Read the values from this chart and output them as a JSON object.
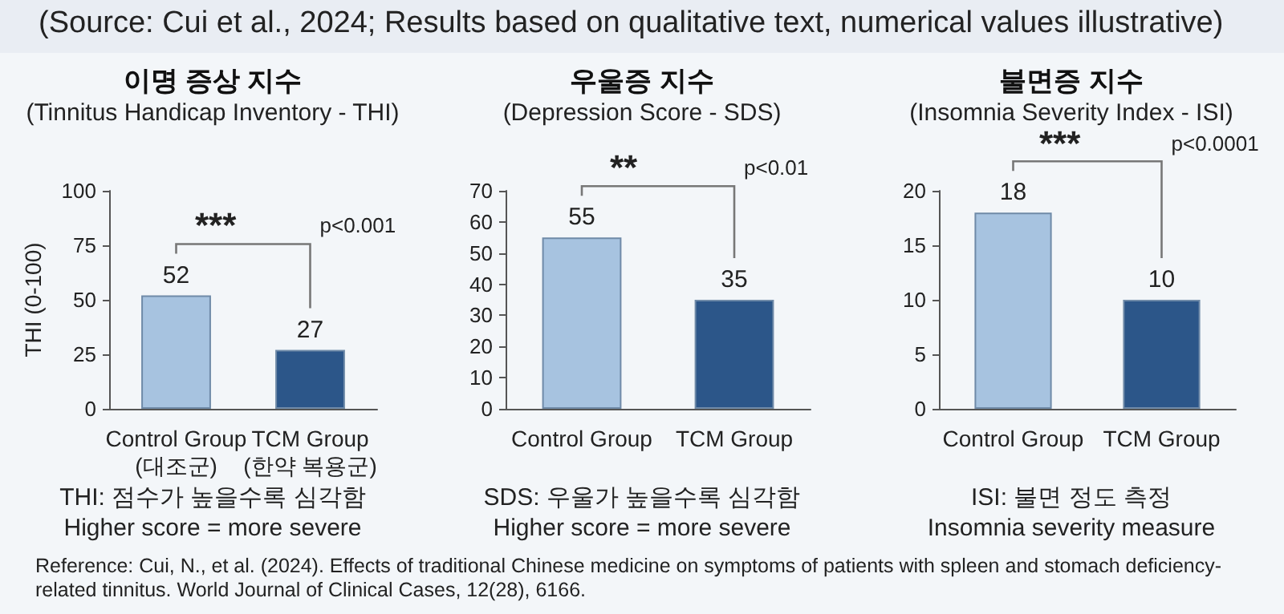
{
  "chart_data": [
    {
      "type": "bar",
      "title": "이명 증상 지수",
      "subtitle": "(Tinnitus Handicap Inventory - THI)",
      "ylabel": "THI (0-100)",
      "categories": [
        "Control Group\n(대조군)",
        "TCM Group\n(한약 복용군)"
      ],
      "values": [
        52,
        27
      ],
      "colors": [
        "#a7c3e0",
        "#2c5689"
      ],
      "ylim": [
        0,
        100
      ],
      "yticks": [
        0,
        25,
        50,
        75,
        100
      ],
      "grid": false,
      "data_labels": true,
      "annotations": [
        "***",
        "p<0.001",
        "THI: 점수가 높을수록 심각함",
        "Higher score = more severe",
        "(Source: Cui et al., 2024; Results based on qualitative text, numerical values illustrative)",
        "Reference: Cui, N., et al. (2024). Effects of traditional Chinese medicine on symptoms of patients with spleen and stomach deficiency-related tinnitus.  World Journal of Clinical Cases, 12(28), 6166."
      ]
    },
    {
      "type": "bar",
      "title": "우울증 지수",
      "subtitle": "(Depression Score - SDS)",
      "categories": [
        "Control Group",
        "TCM Group"
      ],
      "values": [
        55,
        35
      ],
      "colors": [
        "#a7c3e0",
        "#2c5689"
      ],
      "ylim": [
        0,
        70
      ],
      "yticks": [
        0,
        10,
        20,
        30,
        40,
        50,
        60,
        70
      ],
      "grid": false,
      "data_labels": true,
      "annotations": [
        "**",
        "p<0.01",
        "SDS: 우울가 높을수록 심각함",
        "Higher score = more severe"
      ]
    },
    {
      "type": "bar",
      "title": "불면증 지수",
      "subtitle": "(Insomnia Severity Index - ISI)",
      "categories": [
        "Control Group",
        "TCM Group"
      ],
      "values": [
        18,
        10
      ],
      "colors": [
        "#a7c3e0",
        "#2c5689"
      ],
      "ylim": [
        0,
        20
      ],
      "yticks": [
        0,
        5,
        10,
        15,
        20
      ],
      "grid": false,
      "data_labels": true,
      "annotations": [
        "***",
        "p<0.0001",
        "ISI: 불면 정도 측정",
        "Insomnia severity measure"
      ]
    }
  ]
}
